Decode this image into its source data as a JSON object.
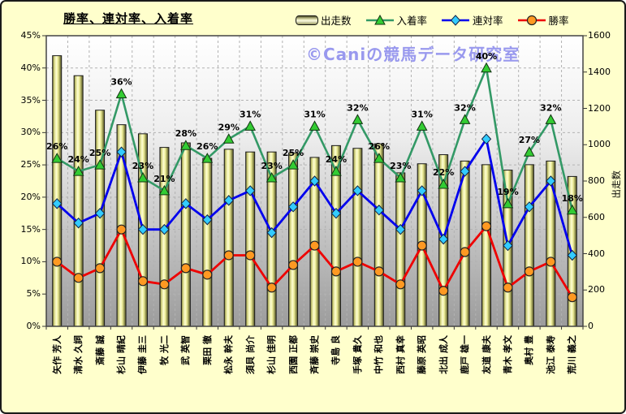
{
  "title": "勝率、連対率、入着率",
  "watermark": "©Caniの競馬データ研究室",
  "colors": {
    "page_background": "#FFFFCC",
    "bar_fill": "#FFFFAA",
    "place_line": "#339966",
    "place_marker": "#33CC33",
    "quinella_line": "#0000EE",
    "quinella_marker": "#33CCFF",
    "win_line": "#EE0000",
    "win_marker": "#FF9922",
    "watermark_color": "#9999EE"
  },
  "legend": [
    {
      "label": "出走数",
      "type": "bar"
    },
    {
      "label": "入着率",
      "type": "triangle"
    },
    {
      "label": "連対率",
      "type": "diamond"
    },
    {
      "label": "勝率",
      "type": "circle"
    }
  ],
  "chart_data": {
    "type": "bar",
    "subtype": "combo-bar-and-lines",
    "grid": true,
    "legend_position": "top",
    "categories": [
      "矢作 芳人",
      "清水 久詞",
      "斎藤 誠",
      "杉山 晴紀",
      "伊藤 圭三",
      "牧 光二",
      "武 英智",
      "栗田 徹",
      "松永 幹夫",
      "須貝 尚介",
      "杉山 佳明",
      "西園 正都",
      "斉藤 崇史",
      "寺島 良",
      "手塚 貴久",
      "中竹 和也",
      "西村 真幸",
      "藤原 英昭",
      "北出 成人",
      "鹿戸 雄一",
      "友道 康夫",
      "青木 孝文",
      "奥村 豊",
      "池江 泰寿",
      "荒川 義之"
    ],
    "series": [
      {
        "name": "出走数",
        "chart_type": "bar",
        "axis": "right",
        "values": [
          1490,
          1380,
          1190,
          1110,
          1060,
          985,
          1010,
          925,
          975,
          960,
          960,
          955,
          930,
          995,
          980,
          1005,
          845,
          895,
          945,
          910,
          890,
          860,
          890,
          910,
          825
        ]
      },
      {
        "name": "入着率",
        "chart_type": "line",
        "marker": "triangle",
        "axis": "left",
        "show_labels": true,
        "values": [
          26,
          24,
          25,
          36,
          23,
          21,
          28,
          26,
          29,
          31,
          23,
          25,
          31,
          24,
          32,
          26,
          23,
          31,
          22,
          32,
          40,
          19,
          27,
          32,
          18
        ]
      },
      {
        "name": "連対率",
        "chart_type": "line",
        "marker": "diamond",
        "axis": "left",
        "show_labels": false,
        "values": [
          19,
          16,
          17.5,
          27,
          15,
          15,
          19,
          16.5,
          19.5,
          21,
          14.5,
          18.5,
          22.5,
          17.5,
          21,
          18,
          15,
          21,
          13.5,
          24,
          29,
          12.5,
          18.5,
          22.5,
          11
        ]
      },
      {
        "name": "勝率",
        "chart_type": "line",
        "marker": "circle",
        "axis": "left",
        "show_labels": false,
        "values": [
          10,
          7.5,
          9,
          15,
          7,
          6.5,
          9,
          8,
          11,
          11,
          6,
          9.5,
          12.5,
          8.5,
          10,
          8.5,
          6.5,
          12.5,
          5.5,
          11.5,
          15.5,
          6,
          8.5,
          10,
          4.5
        ]
      }
    ],
    "left_axis": {
      "unit": "%",
      "min": 0,
      "max": 45,
      "step": 5,
      "tick_labels": [
        "0%",
        "5%",
        "10%",
        "15%",
        "20%",
        "25%",
        "30%",
        "35%",
        "40%",
        "45%"
      ]
    },
    "right_axis": {
      "title": "出走数",
      "min": 0,
      "max": 1600,
      "step": 200,
      "tick_labels": [
        "0",
        "200",
        "400",
        "600",
        "800",
        "1000",
        "1200",
        "1400",
        "1600"
      ]
    }
  }
}
